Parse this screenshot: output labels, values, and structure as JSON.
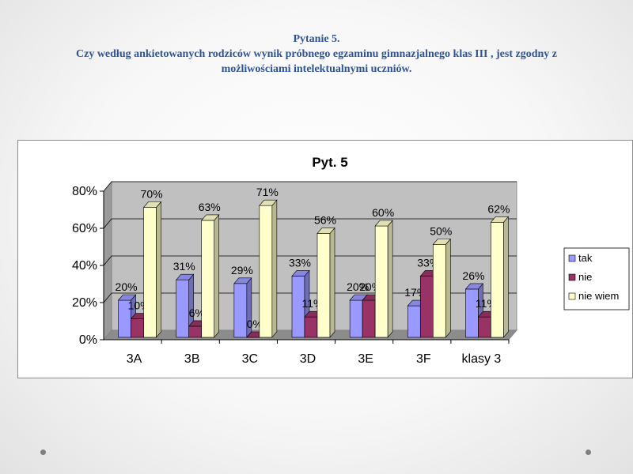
{
  "slide": {
    "title_lines": [
      "Pytanie 5.",
      "Czy według ankietowanych  rodziców  wynik próbnego egzaminu  gimnazjalnego klas III , jest zgodny z",
      "możliwościami intelektualnymi uczniów."
    ]
  },
  "chart_data": {
    "type": "bar",
    "title": "Pyt. 5",
    "categories": [
      "3A",
      "3B",
      "3C",
      "3D",
      "3E",
      "3F",
      "klasy 3"
    ],
    "series": [
      {
        "name": "tak",
        "values": [
          20,
          31,
          29,
          33,
          20,
          17,
          26
        ],
        "color": "#9999ff"
      },
      {
        "name": "nie",
        "values": [
          10,
          6,
          0,
          11,
          20,
          33,
          11
        ],
        "color": "#993366"
      },
      {
        "name": "nie wiem",
        "values": [
          70,
          63,
          71,
          56,
          60,
          50,
          62
        ],
        "color": "#ffffcc"
      }
    ],
    "value_unit": "%",
    "ylim": [
      0,
      80
    ],
    "yticks": [
      0,
      20,
      40,
      60,
      80
    ],
    "ytick_labels": [
      "0%",
      "20%",
      "40%",
      "60%",
      "80%"
    ],
    "xlabel": "",
    "ylabel": "",
    "grid": true,
    "style": "3d-clustered-column",
    "wall_color": "#c0c0c0",
    "legend": "right"
  }
}
